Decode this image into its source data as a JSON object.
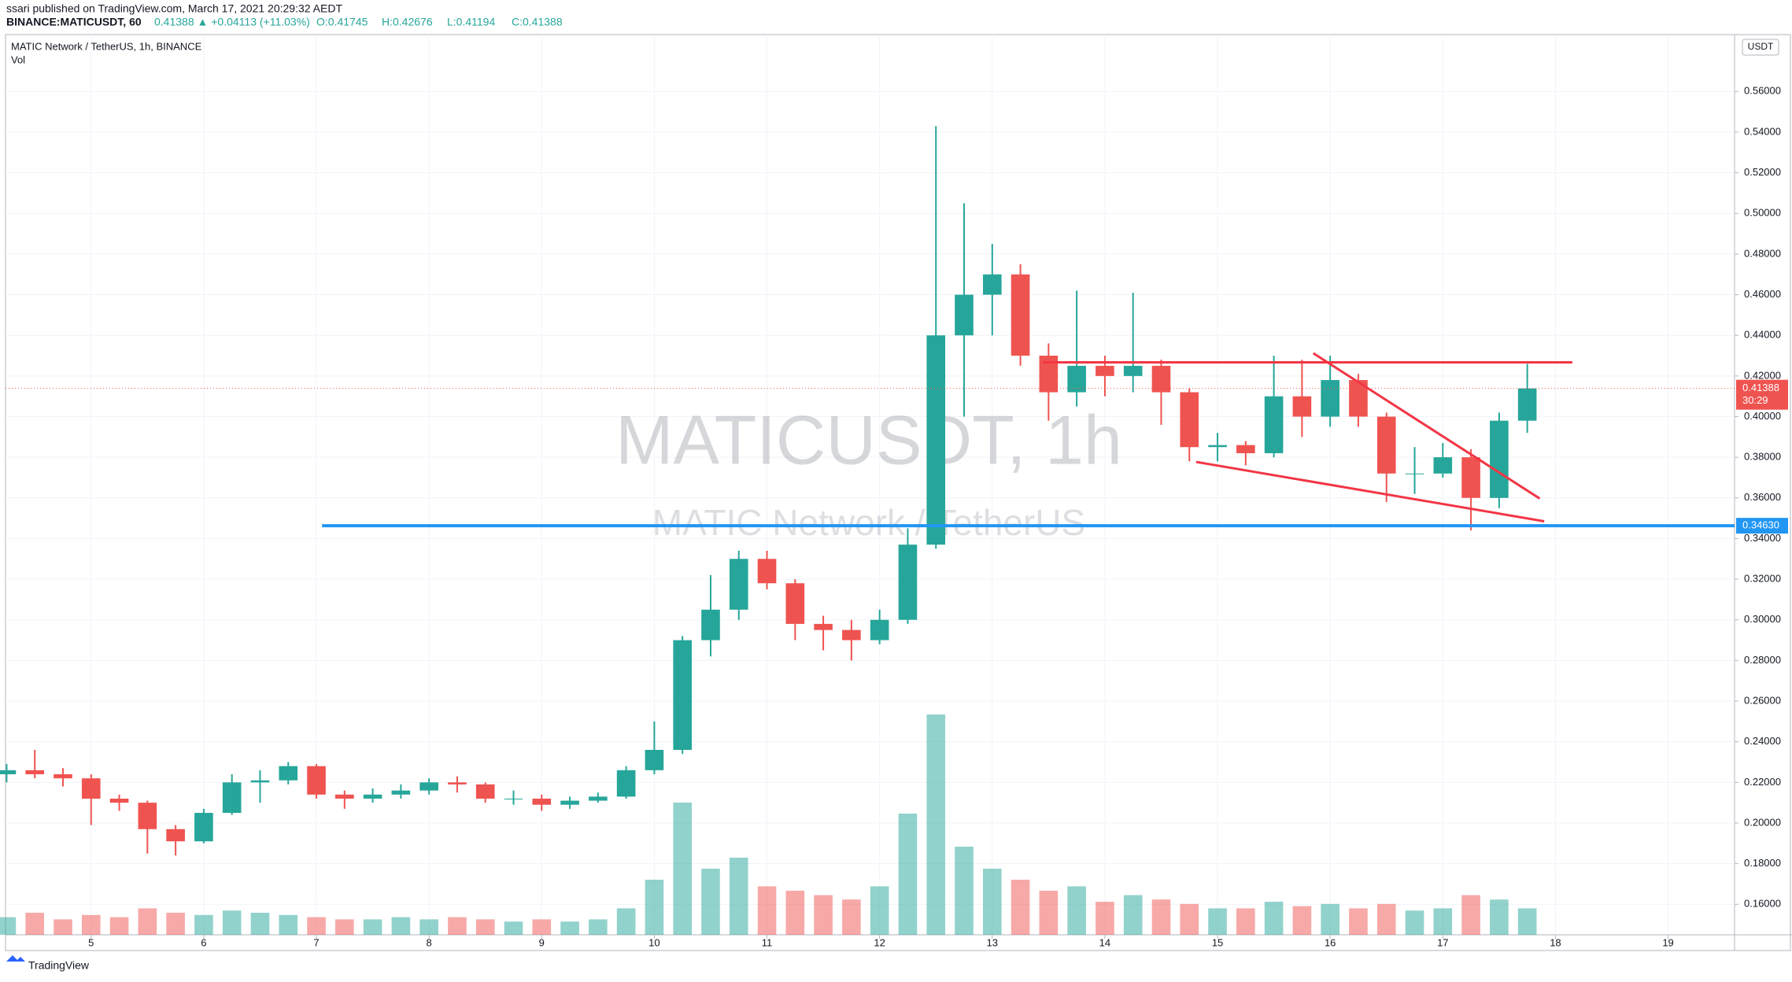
{
  "header": {
    "published": "ssari published on TradingView.com, March 17, 2021 20:29:32 AEDT",
    "symbol": "BINANCE:MATICUSDT, 60",
    "quote": "0.41388 ▲ +0.04113 (+11.03%)",
    "ohlc": [
      "O:0.41745",
      "H:0.42676",
      "L:0.41194",
      "C:0.41388"
    ]
  },
  "footer": {
    "brand": "TradingView"
  },
  "chart_data": {
    "type": "candlestick",
    "title": "MATIC Network / TetherUS, 1h, BINANCE",
    "volume_label": "Vol",
    "watermark": "MATICUSDT, 1h",
    "watermark_subtitle": "MATIC Network / TetherUS",
    "currency": "USDT",
    "up_color": "#26a69a",
    "down_color": "#ef5350",
    "grid": true,
    "x": [
      4.25,
      4.5,
      4.75,
      5,
      5.25,
      5.5,
      5.75,
      6,
      6.25,
      6.5,
      6.75,
      7,
      7.25,
      7.5,
      7.75,
      8,
      8.25,
      8.5,
      8.75,
      9,
      9.25,
      9.5,
      9.75,
      10,
      10.25,
      10.5,
      10.75,
      11,
      11.25,
      11.5,
      11.75,
      12,
      12.25,
      12.5,
      12.75,
      13,
      13.25,
      13.5,
      13.75,
      14,
      14.25,
      14.5,
      14.75,
      15,
      15.25,
      15.5,
      15.75,
      16,
      16.25,
      16.5,
      16.75,
      17,
      17.25,
      17.5,
      17.75
    ],
    "open": [
      0.224,
      0.226,
      0.224,
      0.222,
      0.212,
      0.21,
      0.197,
      0.191,
      0.205,
      0.22,
      0.221,
      0.228,
      0.214,
      0.212,
      0.214,
      0.216,
      0.22,
      0.219,
      0.212,
      0.212,
      0.209,
      0.211,
      0.213,
      0.226,
      0.236,
      0.29,
      0.305,
      0.33,
      0.318,
      0.298,
      0.295,
      0.29,
      0.3,
      0.337,
      0.44,
      0.46,
      0.47,
      0.43,
      0.412,
      0.425,
      0.42,
      0.425,
      0.412,
      0.385,
      0.386,
      0.382,
      0.41,
      0.4,
      0.418,
      0.4,
      0.372,
      0.372,
      0.38,
      0.36,
      0.398
    ],
    "high": [
      0.229,
      0.236,
      0.227,
      0.224,
      0.214,
      0.211,
      0.199,
      0.207,
      0.224,
      0.226,
      0.23,
      0.229,
      0.216,
      0.217,
      0.219,
      0.222,
      0.223,
      0.22,
      0.216,
      0.214,
      0.213,
      0.215,
      0.228,
      0.25,
      0.292,
      0.322,
      0.334,
      0.334,
      0.32,
      0.302,
      0.3,
      0.305,
      0.345,
      0.543,
      0.505,
      0.485,
      0.475,
      0.436,
      0.462,
      0.43,
      0.461,
      0.428,
      0.414,
      0.392,
      0.388,
      0.43,
      0.428,
      0.43,
      0.421,
      0.402,
      0.385,
      0.387,
      0.384,
      0.402,
      0.426
    ],
    "low": [
      0.22,
      0.222,
      0.218,
      0.199,
      0.206,
      0.185,
      0.184,
      0.19,
      0.204,
      0.21,
      0.219,
      0.212,
      0.207,
      0.21,
      0.212,
      0.214,
      0.215,
      0.21,
      0.209,
      0.206,
      0.207,
      0.21,
      0.212,
      0.224,
      0.234,
      0.282,
      0.3,
      0.315,
      0.29,
      0.285,
      0.28,
      0.288,
      0.298,
      0.335,
      0.4,
      0.44,
      0.425,
      0.398,
      0.405,
      0.41,
      0.412,
      0.396,
      0.378,
      0.378,
      0.376,
      0.38,
      0.39,
      0.395,
      0.395,
      0.358,
      0.362,
      0.37,
      0.344,
      0.355,
      0.392
    ],
    "close": [
      0.226,
      0.224,
      0.222,
      0.212,
      0.21,
      0.197,
      0.191,
      0.205,
      0.22,
      0.221,
      0.228,
      0.214,
      0.212,
      0.214,
      0.216,
      0.22,
      0.219,
      0.212,
      0.212,
      0.209,
      0.211,
      0.213,
      0.226,
      0.236,
      0.29,
      0.305,
      0.33,
      0.318,
      0.298,
      0.295,
      0.29,
      0.3,
      0.337,
      0.44,
      0.46,
      0.47,
      0.43,
      0.412,
      0.425,
      0.42,
      0.425,
      0.412,
      0.385,
      0.386,
      0.382,
      0.41,
      0.4,
      0.418,
      0.4,
      0.372,
      0.372,
      0.38,
      0.36,
      0.398,
      0.41388
    ],
    "volume": [
      8,
      10,
      7,
      9,
      8,
      12,
      10,
      9,
      11,
      10,
      9,
      8,
      7,
      7,
      8,
      7,
      8,
      7,
      6,
      7,
      6,
      7,
      12,
      25,
      60,
      30,
      35,
      22,
      20,
      18,
      16,
      22,
      55,
      100,
      40,
      30,
      25,
      20,
      22,
      15,
      18,
      16,
      14,
      12,
      12,
      15,
      13,
      14,
      12,
      14,
      11,
      12,
      18,
      16,
      12
    ],
    "xlim": [
      4.24,
      19.59
    ],
    "xticks": [
      5,
      6,
      7,
      8,
      9,
      10,
      11,
      12,
      13,
      14,
      15,
      16,
      17,
      18,
      19
    ],
    "ylim": [
      0.145,
      0.588
    ],
    "yticks": [
      {
        "value": 0.16,
        "label": "0.16000"
      },
      {
        "value": 0.18,
        "label": "0.18000"
      },
      {
        "value": 0.2,
        "label": "0.20000"
      },
      {
        "value": 0.22,
        "label": "0.22000"
      },
      {
        "value": 0.24,
        "label": "0.24000"
      },
      {
        "value": 0.26,
        "label": "0.26000"
      },
      {
        "value": 0.28,
        "label": "0.28000"
      },
      {
        "value": 0.3,
        "label": "0.30000"
      },
      {
        "value": 0.32,
        "label": "0.32000"
      },
      {
        "value": 0.34,
        "label": "0.34000"
      },
      {
        "value": 0.36,
        "label": "0.36000"
      },
      {
        "value": 0.38,
        "label": "0.38000"
      },
      {
        "value": 0.4,
        "label": "0.40000"
      },
      {
        "value": 0.42,
        "label": "0.42000"
      },
      {
        "value": 0.44,
        "label": "0.44000"
      },
      {
        "value": 0.46,
        "label": "0.46000"
      },
      {
        "value": 0.48,
        "label": "0.48000"
      },
      {
        "value": 0.5,
        "label": "0.50000"
      },
      {
        "value": 0.52,
        "label": "0.52000"
      },
      {
        "value": 0.54,
        "label": "0.54000"
      },
      {
        "value": 0.56,
        "label": "0.56000"
      }
    ],
    "last_price": 0.41388,
    "countdown": "30:29",
    "level": {
      "y": {
        "value": 0.3463,
        "label": "0.34630"
      },
      "x_start": 7.05,
      "color": "#2196f3"
    },
    "drawings": [
      {
        "color": "#f23645",
        "x": [
          13.45,
          18.15
        ],
        "y": [
          0.4267,
          0.4267
        ]
      },
      {
        "color": "#f23645",
        "x": [
          15.85,
          17.86
        ],
        "y": [
          0.4312,
          0.3597
        ]
      },
      {
        "color": "#f23645",
        "x": [
          14.81,
          17.9
        ],
        "y": [
          0.3777,
          0.3485
        ]
      }
    ]
  }
}
